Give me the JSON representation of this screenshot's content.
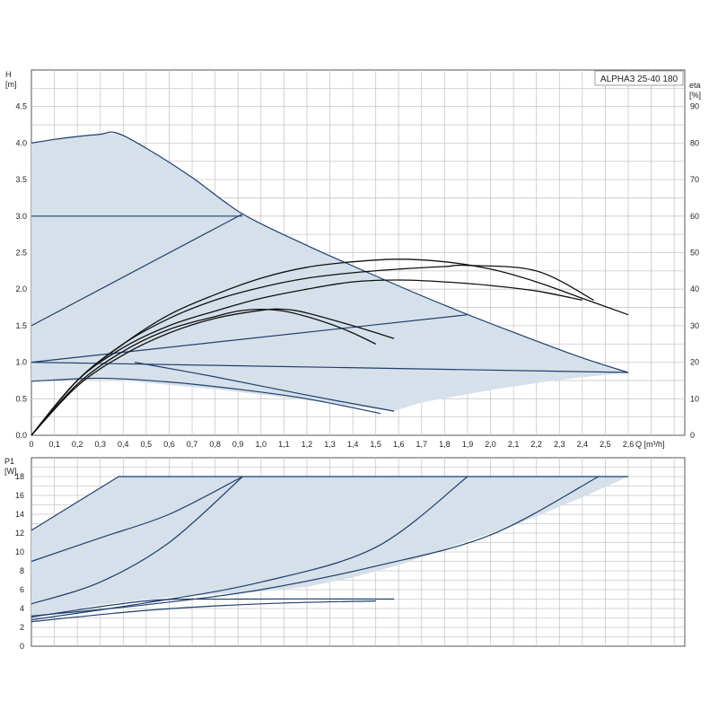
{
  "chart_data": [
    {
      "type": "line",
      "name": "head-and-efficiency",
      "legend": "ALPHA3 25-40 180",
      "xlabel": "Q [m³/h]",
      "ylabel": "H\n[m]",
      "y2label": "eta\n[%]",
      "xlim": [
        0,
        2.6
      ],
      "ylim": [
        0,
        5.0
      ],
      "y2lim": [
        0,
        100
      ],
      "xticks": [
        "0",
        "0,1",
        "0,2",
        "0,3",
        "0,4",
        "0,5",
        "0,6",
        "0,7",
        "0,8",
        "0,9",
        "1,0",
        "1,1",
        "1,2",
        "1,3",
        "1,4",
        "1,5",
        "1,6",
        "1,7",
        "1,8",
        "1,9",
        "2,0",
        "2,1",
        "2,2",
        "2,3",
        "2,4",
        "2,5",
        "2,6"
      ],
      "yticks": [
        "0.0",
        "0.5",
        "1.0",
        "1.5",
        "2.0",
        "2.5",
        "3.0",
        "3.5",
        "4.0",
        "4.5"
      ],
      "y2ticks": [
        "0",
        "10",
        "20",
        "30",
        "40",
        "50",
        "60",
        "70",
        "80",
        "90"
      ],
      "grid": true,
      "colors": {
        "region": "#d5e0ea",
        "curve": "#1f3f6e",
        "efficiency": "#111111",
        "grid": "#c8c8c8"
      },
      "operating_region": [
        [
          0,
          4.0
        ],
        [
          0.1,
          4.05
        ],
        [
          0.2,
          4.09
        ],
        [
          0.3,
          4.12
        ],
        [
          0.37,
          4.14
        ],
        [
          0.5,
          3.93
        ],
        [
          0.7,
          3.53
        ],
        [
          0.92,
          3.03
        ],
        [
          1.2,
          2.6
        ],
        [
          1.5,
          2.18
        ],
        [
          1.8,
          1.78
        ],
        [
          2.1,
          1.41
        ],
        [
          2.4,
          1.06
        ],
        [
          2.6,
          0.86
        ],
        [
          2.3,
          0.76
        ],
        [
          2.0,
          0.62
        ],
        [
          1.7,
          0.45
        ],
        [
          1.58,
          0.33
        ],
        [
          1.4,
          0.4
        ],
        [
          1.1,
          0.52
        ],
        [
          0.8,
          0.63
        ],
        [
          0.5,
          0.72
        ],
        [
          0.3,
          0.78
        ],
        [
          0.1,
          0.77
        ],
        [
          0,
          0.74
        ]
      ],
      "series": [
        {
          "kind": "max",
          "points": [
            [
              0,
              4.0
            ],
            [
              0.1,
              4.05
            ],
            [
              0.2,
              4.09
            ],
            [
              0.3,
              4.12
            ],
            [
              0.37,
              4.14
            ],
            [
              0.5,
              3.93
            ],
            [
              0.7,
              3.53
            ],
            [
              0.92,
              3.03
            ],
            [
              1.2,
              2.6
            ],
            [
              1.5,
              2.18
            ],
            [
              1.8,
              1.78
            ],
            [
              2.1,
              1.41
            ],
            [
              2.4,
              1.06
            ],
            [
              2.6,
              0.86
            ]
          ]
        },
        {
          "kind": "constant",
          "points": [
            [
              0,
              3.0
            ],
            [
              0.92,
              3.0
            ]
          ]
        },
        {
          "kind": "proportional",
          "points": [
            [
              0,
              1.5
            ],
            [
              0.92,
              3.03
            ]
          ]
        },
        {
          "kind": "constant",
          "points": [
            [
              0,
              1.0
            ],
            [
              2.6,
              0.86
            ]
          ]
        },
        {
          "kind": "proportional",
          "points": [
            [
              0,
              1.0
            ],
            [
              1.9,
              1.65
            ]
          ]
        },
        {
          "kind": "min",
          "points": [
            [
              0,
              0.74
            ],
            [
              0.3,
              0.78
            ],
            [
              0.6,
              0.73
            ],
            [
              0.9,
              0.63
            ],
            [
              1.2,
              0.5
            ],
            [
              1.52,
              0.3
            ]
          ]
        },
        {
          "kind": "min",
          "points": [
            [
              0.45,
              1.0
            ],
            [
              0.8,
              0.8
            ],
            [
              1.2,
              0.55
            ],
            [
              1.58,
              0.33
            ]
          ]
        },
        {
          "kind": "efficiency",
          "points": [
            [
              0,
              0
            ],
            [
              0.2,
              15
            ],
            [
              0.4,
              25
            ],
            [
              0.6,
              33
            ],
            [
              0.8,
              38.5
            ],
            [
              1.0,
              43
            ],
            [
              1.2,
              46
            ],
            [
              1.4,
              47.5
            ],
            [
              1.6,
              48.2
            ],
            [
              1.8,
              47.5
            ],
            [
              2.0,
              45.5
            ],
            [
              2.2,
              42
            ],
            [
              2.4,
              37.5
            ],
            [
              2.6,
              33
            ]
          ]
        },
        {
          "kind": "efficiency",
          "points": [
            [
              0,
              0
            ],
            [
              0.2,
              15
            ],
            [
              0.4,
              25
            ],
            [
              0.6,
              32
            ],
            [
              0.8,
              37
            ],
            [
              1.0,
              40.5
            ],
            [
              1.2,
              43
            ],
            [
              1.4,
              44.5
            ],
            [
              1.6,
              45.5
            ],
            [
              1.8,
              46.2
            ],
            [
              1.9,
              46.5
            ],
            [
              2.2,
              45
            ],
            [
              2.45,
              37
            ]
          ]
        },
        {
          "kind": "efficiency",
          "points": [
            [
              0,
              0
            ],
            [
              0.2,
              15
            ],
            [
              0.4,
              24
            ],
            [
              0.6,
              30
            ],
            [
              0.8,
              34
            ],
            [
              1.0,
              37.5
            ],
            [
              1.2,
              40
            ],
            [
              1.4,
              42
            ],
            [
              1.6,
              42.5
            ],
            [
              1.8,
              42
            ],
            [
              2.0,
              41
            ],
            [
              2.2,
              39.5
            ],
            [
              2.4,
              37
            ]
          ]
        },
        {
          "kind": "efficiency",
          "points": [
            [
              0,
              0
            ],
            [
              0.2,
              14
            ],
            [
              0.4,
              23
            ],
            [
              0.6,
              29
            ],
            [
              0.8,
              32.5
            ],
            [
              0.9,
              34
            ],
            [
              1.0,
              34.5
            ],
            [
              1.1,
              34
            ],
            [
              1.2,
              32.5
            ],
            [
              1.3,
              30.5
            ],
            [
              1.4,
              28
            ],
            [
              1.5,
              25
            ]
          ]
        },
        {
          "kind": "efficiency",
          "points": [
            [
              0,
              0
            ],
            [
              0.2,
              13.5
            ],
            [
              0.4,
              22
            ],
            [
              0.6,
              28
            ],
            [
              0.8,
              32
            ],
            [
              1.0,
              34.2
            ],
            [
              1.1,
              34.5
            ],
            [
              1.2,
              33.5
            ],
            [
              1.4,
              30
            ],
            [
              1.58,
              26.5
            ]
          ]
        }
      ]
    },
    {
      "type": "line",
      "name": "power",
      "xlabel": "",
      "ylabel": "P1\n[W]",
      "xlim": [
        0,
        2.6
      ],
      "ylim": [
        0,
        20
      ],
      "yticks": [
        "0",
        "2",
        "4",
        "6",
        "8",
        "10",
        "12",
        "14",
        "16",
        "18"
      ],
      "grid": true,
      "operating_region": [
        [
          0,
          12.3
        ],
        [
          0.38,
          18
        ],
        [
          2.6,
          18
        ],
        [
          2.4,
          15.8
        ],
        [
          2.1,
          12.8
        ],
        [
          1.8,
          10.3
        ],
        [
          1.6,
          8.6
        ],
        [
          1.4,
          7.3
        ],
        [
          1.2,
          6.3
        ],
        [
          1.0,
          5.8
        ],
        [
          0.6,
          5.2
        ],
        [
          0.3,
          4.4
        ],
        [
          0,
          3.1
        ]
      ],
      "series": [
        {
          "kind": "max",
          "points": [
            [
              0,
              12.3
            ],
            [
              0.38,
              18
            ],
            [
              2.6,
              18
            ]
          ]
        },
        {
          "kind": "constant",
          "points": [
            [
              0,
              9.0
            ],
            [
              0.3,
              11.5
            ],
            [
              0.6,
              14
            ],
            [
              0.92,
              18
            ]
          ]
        },
        {
          "kind": "proportional",
          "points": [
            [
              0,
              4.5
            ],
            [
              0.3,
              6.8
            ],
            [
              0.6,
              11
            ],
            [
              0.92,
              18
            ]
          ]
        },
        {
          "kind": "constant",
          "points": [
            [
              0,
              2.8
            ],
            [
              0.5,
              4.6
            ],
            [
              1.0,
              6.8
            ],
            [
              1.5,
              10.5
            ],
            [
              1.9,
              18
            ]
          ]
        },
        {
          "kind": "proportional",
          "points": [
            [
              0,
              3.2
            ],
            [
              0.5,
              4.4
            ],
            [
              1.0,
              6.0
            ],
            [
              1.5,
              8.5
            ],
            [
              2.0,
              11.8
            ],
            [
              2.47,
              18
            ]
          ]
        },
        {
          "kind": "min",
          "points": [
            [
              0,
              2.6
            ],
            [
              0.5,
              3.8
            ],
            [
              1.0,
              4.5
            ],
            [
              1.5,
              4.8
            ]
          ]
        },
        {
          "kind": "min",
          "points": [
            [
              0,
              3.1
            ],
            [
              0.5,
              4.8
            ],
            [
              0.9,
              5.0
            ],
            [
              1.58,
              5.0
            ]
          ]
        }
      ]
    }
  ]
}
